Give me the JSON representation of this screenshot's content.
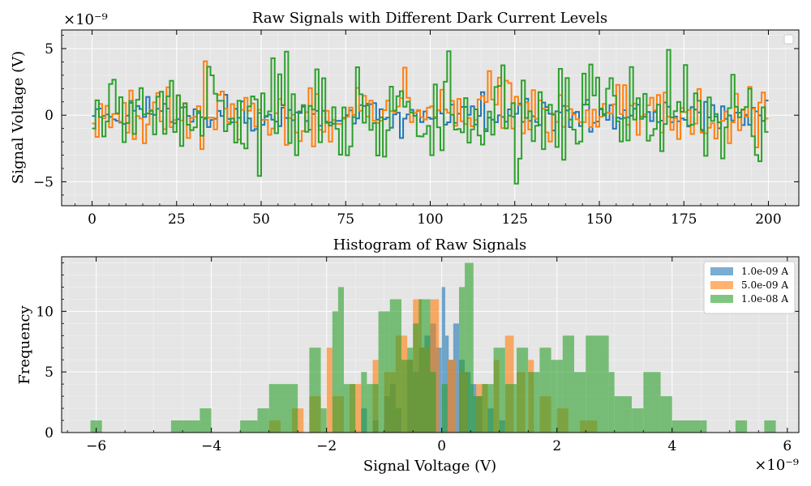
{
  "chart_data": [
    {
      "type": "line",
      "style": "step",
      "title": "Raw Signals with Different Dark Current Levels",
      "xlabel": "",
      "ylabel": "Signal Voltage (V)",
      "y_scale_label": "×10⁻⁹",
      "xlim": [
        -9,
        209
      ],
      "ylim": [
        -6.8,
        6.4
      ],
      "x_ticks": [
        0,
        25,
        50,
        75,
        100,
        125,
        150,
        175,
        200
      ],
      "y_ticks": [
        -5,
        0,
        5
      ],
      "grid": true,
      "legend": "top-right (empty)",
      "n_points": 200,
      "series": [
        {
          "label_text": "1.0e-09 A",
          "color": "#1f77b4",
          "amplitude": 1.0,
          "seed": 11
        },
        {
          "label_text": "5.0e-09 A",
          "color": "#ff7f0e",
          "amplitude": 2.3,
          "seed": 23
        },
        {
          "label_text": "1.0e-08 A",
          "color": "#2ca02c",
          "amplitude": 3.6,
          "seed": 37
        }
      ]
    },
    {
      "type": "histogram",
      "title": "Histogram of Raw Signals",
      "xlabel": "Signal Voltage (V)",
      "ylabel": "Frequency",
      "x_scale_label": "×10⁻⁹",
      "xlim": [
        -6.6,
        6.2
      ],
      "ylim": [
        0,
        14.5
      ],
      "x_ticks": [
        -6,
        -4,
        -2,
        0,
        2,
        4,
        6
      ],
      "y_ticks": [
        0,
        5,
        10
      ],
      "grid": true,
      "legend": "top-right",
      "series": [
        {
          "name": "1.0e-09 A",
          "color": "#1f77b4",
          "bins": [
            [
              -1.4,
              -1.3,
              2
            ],
            [
              -1.2,
              -1.1,
              1
            ],
            [
              -1.0,
              -0.9,
              3
            ],
            [
              -0.9,
              -0.8,
              4
            ],
            [
              -0.8,
              -0.7,
              2
            ],
            [
              -0.6,
              -0.5,
              6
            ],
            [
              -0.5,
              -0.4,
              5
            ],
            [
              -0.4,
              -0.3,
              7
            ],
            [
              -0.3,
              -0.2,
              8
            ],
            [
              -0.2,
              -0.1,
              9
            ],
            [
              -0.1,
              0.0,
              7
            ],
            [
              0.0,
              0.06,
              12
            ],
            [
              0.06,
              0.12,
              8
            ],
            [
              0.12,
              0.2,
              6
            ],
            [
              0.2,
              0.3,
              9
            ],
            [
              0.3,
              0.4,
              6
            ],
            [
              0.4,
              0.5,
              5
            ],
            [
              0.5,
              0.6,
              4
            ],
            [
              0.6,
              0.7,
              3
            ],
            [
              0.8,
              0.9,
              2
            ],
            [
              1.0,
              1.1,
              1
            ]
          ]
        },
        {
          "name": "5.0e-09 A",
          "color": "#ff7f0e",
          "bins": [
            [
              -3.0,
              -2.8,
              1
            ],
            [
              -2.6,
              -2.4,
              2
            ],
            [
              -2.3,
              -2.1,
              3
            ],
            [
              -2.0,
              -1.9,
              7
            ],
            [
              -1.9,
              -1.7,
              3
            ],
            [
              -1.6,
              -1.4,
              4
            ],
            [
              -1.2,
              -1.1,
              6
            ],
            [
              -1.0,
              -0.8,
              5
            ],
            [
              -0.8,
              -0.6,
              8
            ],
            [
              -0.6,
              -0.5,
              6
            ],
            [
              -0.5,
              -0.35,
              11
            ],
            [
              -0.35,
              -0.2,
              7
            ],
            [
              -0.2,
              -0.05,
              11
            ],
            [
              0.1,
              0.25,
              6
            ],
            [
              0.3,
              0.45,
              5
            ],
            [
              0.6,
              0.8,
              4
            ],
            [
              0.9,
              1.0,
              6
            ],
            [
              1.1,
              1.25,
              8
            ],
            [
              1.3,
              1.45,
              5
            ],
            [
              1.5,
              1.6,
              6
            ],
            [
              1.7,
              1.9,
              3
            ],
            [
              2.0,
              2.2,
              2
            ],
            [
              2.4,
              2.7,
              1
            ]
          ]
        },
        {
          "name": "1.0e-08 A",
          "color": "#2ca02c",
          "bins": [
            [
              -6.1,
              -5.9,
              1
            ],
            [
              -4.7,
              -4.2,
              1
            ],
            [
              -4.2,
              -4.0,
              2
            ],
            [
              -3.5,
              -3.2,
              1
            ],
            [
              -3.2,
              -3.0,
              2
            ],
            [
              -3.0,
              -2.5,
              4
            ],
            [
              -2.3,
              -2.1,
              7
            ],
            [
              -2.1,
              -2.0,
              2
            ],
            [
              -1.9,
              -1.8,
              10
            ],
            [
              -1.8,
              -1.7,
              12
            ],
            [
              -1.7,
              -1.5,
              4
            ],
            [
              -1.4,
              -1.3,
              5
            ],
            [
              -1.3,
              -1.1,
              4
            ],
            [
              -1.1,
              -0.9,
              10
            ],
            [
              -0.9,
              -0.7,
              11
            ],
            [
              -0.7,
              -0.6,
              6
            ],
            [
              -0.6,
              -0.5,
              7
            ],
            [
              -0.5,
              -0.4,
              9
            ],
            [
              -0.4,
              -0.2,
              11
            ],
            [
              -0.2,
              -0.1,
              5
            ],
            [
              0.0,
              0.1,
              4
            ],
            [
              0.3,
              0.4,
              12
            ],
            [
              0.4,
              0.55,
              14
            ],
            [
              0.55,
              0.7,
              3
            ],
            [
              0.7,
              0.9,
              4
            ],
            [
              0.9,
              1.1,
              7
            ],
            [
              1.1,
              1.3,
              4
            ],
            [
              1.3,
              1.5,
              7
            ],
            [
              1.5,
              1.7,
              5
            ],
            [
              1.7,
              1.9,
              7
            ],
            [
              1.9,
              2.1,
              6
            ],
            [
              2.1,
              2.3,
              8
            ],
            [
              2.3,
              2.5,
              5
            ],
            [
              2.5,
              2.9,
              8
            ],
            [
              2.9,
              3.0,
              5
            ],
            [
              3.0,
              3.3,
              3
            ],
            [
              3.3,
              3.5,
              2
            ],
            [
              3.5,
              3.8,
              5
            ],
            [
              3.8,
              4.0,
              3
            ],
            [
              4.0,
              4.6,
              1
            ],
            [
              5.1,
              5.3,
              1
            ],
            [
              5.6,
              5.8,
              1
            ]
          ]
        }
      ]
    }
  ]
}
